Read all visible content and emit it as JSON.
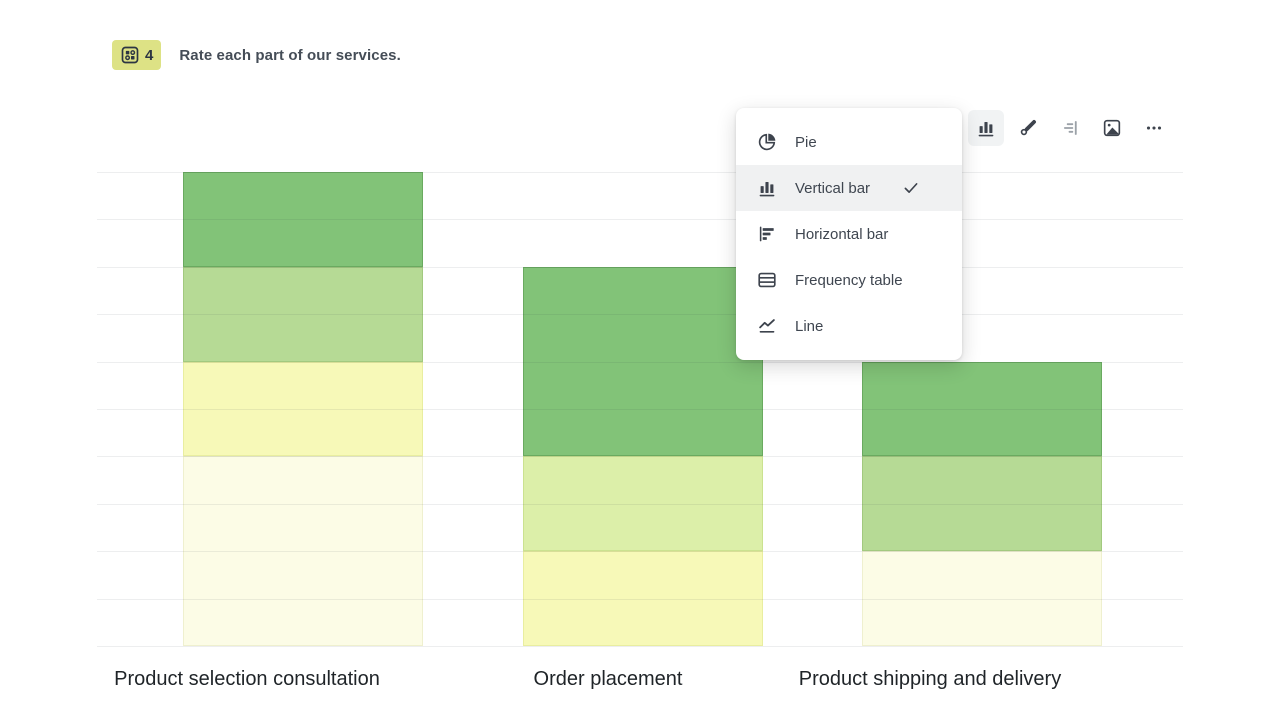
{
  "question": {
    "number": "4",
    "title": "Rate each part of our services.",
    "type_icon": "matrix-question-icon",
    "badge_color": "#dde285"
  },
  "toolbar": {
    "buttons": [
      {
        "id": "chart-type",
        "icon": "bar-chart-icon",
        "active": true,
        "disabled": false
      },
      {
        "id": "style",
        "icon": "paint-brush-icon",
        "active": false,
        "disabled": false
      },
      {
        "id": "order",
        "icon": "align-right-icon",
        "active": false,
        "disabled": true
      },
      {
        "id": "image",
        "icon": "image-icon",
        "active": false,
        "disabled": false
      },
      {
        "id": "more",
        "icon": "ellipsis-icon",
        "active": false,
        "disabled": false
      }
    ]
  },
  "chart_type_menu": {
    "items": [
      {
        "label": "Pie",
        "icon": "pie-chart-icon",
        "selected": false
      },
      {
        "label": "Vertical bar",
        "icon": "vertical-bar-chart-icon",
        "selected": true
      },
      {
        "label": "Horizontal bar",
        "icon": "horizontal-bar-chart-icon",
        "selected": false
      },
      {
        "label": "Frequency table",
        "icon": "frequency-table-icon",
        "selected": false
      },
      {
        "label": "Line",
        "icon": "line-chart-icon",
        "selected": false
      }
    ]
  },
  "chart_data": {
    "type": "bar",
    "stacked": true,
    "orientation": "vertical",
    "grid": true,
    "gridline_count": 11,
    "ylim": [
      0,
      10
    ],
    "unit_per_gridline": 1,
    "palette": [
      {
        "fill": "#82c378",
        "border": "#6aaa60"
      },
      {
        "fill": "#b6da95",
        "border": "#a2c97f"
      },
      {
        "fill": "#dcefa9",
        "border": "#cbe290"
      },
      {
        "fill": "#f7f9b8",
        "border": "#e9eea0"
      },
      {
        "fill": "#fcfce6",
        "border": "#eff0cf"
      }
    ],
    "categories": [
      "Product selection consultation",
      "Order placement",
      "Product shipping and delivery"
    ],
    "bars": [
      {
        "category": "Product selection consultation",
        "total": 10,
        "segments": [
          {
            "palette": 0,
            "value": 2
          },
          {
            "palette": 1,
            "value": 2
          },
          {
            "palette": 3,
            "value": 2
          },
          {
            "palette": 4,
            "value": 4
          }
        ]
      },
      {
        "category": "Order placement",
        "total": 8,
        "segments": [
          {
            "palette": 0,
            "value": 4
          },
          {
            "palette": 2,
            "value": 2
          },
          {
            "palette": 3,
            "value": 2
          }
        ]
      },
      {
        "category": "Product shipping and delivery",
        "total": 6,
        "segments": [
          {
            "palette": 0,
            "value": 2
          },
          {
            "palette": 1,
            "value": 2
          },
          {
            "palette": 4,
            "value": 2
          }
        ]
      }
    ]
  }
}
